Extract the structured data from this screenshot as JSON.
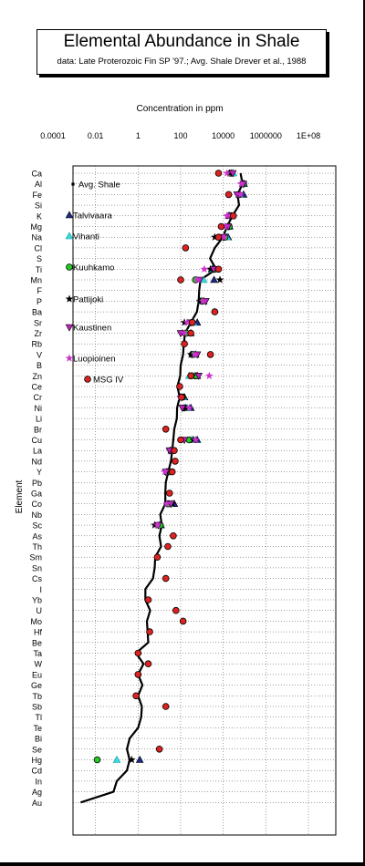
{
  "title": "Elemental  Abundance in Shale",
  "subtitle": "data:  Late Proterozoic Fin SP '97.; Avg. Shale Drever et al., 1988",
  "chart_data": {
    "type": "scatter",
    "xlabel": "Concentration in ppm",
    "ylabel": "Element",
    "x_scale": "log",
    "xlim": [
      0.0001,
      100000000
    ],
    "x_ticks": [
      "0.0001",
      "0.01",
      "1",
      "100",
      "10000",
      "1000000",
      "1E+08"
    ],
    "grid": true,
    "legend_position": "top-left",
    "categories": [
      "Ca",
      "Al",
      "Fe",
      "Si",
      "K",
      "Mg",
      "Na",
      "Cl",
      "S",
      "Ti",
      "Mn",
      "F",
      "P",
      "Ba",
      "Sr",
      "Zr",
      "Rb",
      "V",
      "B",
      "Zn",
      "Ce",
      "Cr",
      "Ni",
      "Li",
      "Br",
      "Cu",
      "La",
      "Nd",
      "Y",
      "Pb",
      "Ga",
      "Co",
      "Nb",
      "Sc",
      "As",
      "Th",
      "Sm",
      "Sn",
      "Cs",
      "I",
      "Yb",
      "U",
      "Mo",
      "Hf",
      "Be",
      "Ta",
      "W",
      "Eu",
      "Ge",
      "Tb",
      "Sb",
      "Tl",
      "Te",
      "Bi",
      "Se",
      "Hg",
      "Cd",
      "In",
      "Ag",
      "Au"
    ],
    "series": [
      {
        "name": "Avg. Shale",
        "marker": "line",
        "color": "#000000",
        "points": [
          [
            "Ca",
            65000
          ],
          [
            "Al",
            80000
          ],
          [
            "Fe",
            47000
          ],
          [
            "Si",
            55000
          ],
          [
            "K",
            27000
          ],
          [
            "Mg",
            15000
          ],
          [
            "Na",
            9600
          ],
          [
            "Cl",
            4000
          ],
          [
            "S",
            2400
          ],
          [
            "Ti",
            4600
          ],
          [
            "Mn",
            850
          ],
          [
            "F",
            740
          ],
          [
            "P",
            700
          ],
          [
            "Ba",
            580
          ],
          [
            "Sr",
            300
          ],
          [
            "Zr",
            160
          ],
          [
            "Rb",
            140
          ],
          [
            "V",
            130
          ],
          [
            "B",
            100
          ],
          [
            "Zn",
            95
          ],
          [
            "Ce",
            70
          ],
          [
            "Cr",
            90
          ],
          [
            "Ni",
            68
          ],
          [
            "Li",
            66
          ],
          [
            "Br",
            50
          ],
          [
            "Cu",
            45
          ],
          [
            "La",
            40
          ],
          [
            "Nd",
            35
          ],
          [
            "Y",
            26
          ],
          [
            "Pb",
            20
          ],
          [
            "Ga",
            19
          ],
          [
            "Co",
            19
          ],
          [
            "Nb",
            11
          ],
          [
            "Sc",
            13
          ],
          [
            "As",
            10
          ],
          [
            "Th",
            12
          ],
          [
            "Sm",
            6.4
          ],
          [
            "Sn",
            6
          ],
          [
            "Cs",
            5
          ],
          [
            "I",
            2.2
          ],
          [
            "Yb",
            2.2
          ],
          [
            "U",
            3.7
          ],
          [
            "Mo",
            2.6
          ],
          [
            "Hf",
            2.8
          ],
          [
            "Be",
            3
          ],
          [
            "Ta",
            0.8
          ],
          [
            "W",
            1.8
          ],
          [
            "Eu",
            1
          ],
          [
            "Ge",
            1.6
          ],
          [
            "Tb",
            1
          ],
          [
            "Sb",
            1.5
          ],
          [
            "Tl",
            1.4
          ],
          [
            "Te",
            1
          ],
          [
            "Bi",
            0.4
          ],
          [
            "Se",
            0.3
          ],
          [
            "Hg",
            0.4
          ],
          [
            "Cd",
            0.3
          ],
          [
            "In",
            0.1
          ],
          [
            "Ag",
            0.07
          ],
          [
            "Au",
            0.002
          ]
        ]
      },
      {
        "name": "Talvivaara",
        "marker": "triangle",
        "color": "#1a2a8a",
        "points": [
          [
            "Ca",
            25000
          ],
          [
            "Al",
            95000
          ],
          [
            "Fe",
            90000
          ],
          [
            "K",
            20000
          ],
          [
            "Mg",
            20000
          ],
          [
            "Na",
            17000
          ],
          [
            "Ti",
            3000
          ],
          [
            "Mn",
            3700
          ],
          [
            "P",
            1200
          ],
          [
            "Sr",
            600
          ],
          [
            "Zr",
            300
          ],
          [
            "V",
            500
          ],
          [
            "Zn",
            600
          ],
          [
            "Cr",
            150
          ],
          [
            "Ni",
            300
          ],
          [
            "Cu",
            600
          ],
          [
            "La",
            40
          ],
          [
            "Y",
            30
          ],
          [
            "Co",
            50
          ],
          [
            "Sc",
            12
          ],
          [
            "Hg",
            1.2
          ]
        ]
      },
      {
        "name": "Vihanti",
        "marker": "triangle",
        "color": "#33dddd",
        "points": [
          [
            "Ca",
            30000
          ],
          [
            "Al",
            85000
          ],
          [
            "Fe",
            60000
          ],
          [
            "K",
            25000
          ],
          [
            "Mg",
            18000
          ],
          [
            "Na",
            15000
          ],
          [
            "Ti",
            3200
          ],
          [
            "Mn",
            1200
          ],
          [
            "P",
            900
          ],
          [
            "Sr",
            400
          ],
          [
            "Zr",
            200
          ],
          [
            "V",
            400
          ],
          [
            "Zn",
            250
          ],
          [
            "Cr",
            130
          ],
          [
            "Ni",
            200
          ],
          [
            "Cu",
            350
          ],
          [
            "La",
            38
          ],
          [
            "Y",
            25
          ],
          [
            "Co",
            30
          ],
          [
            "Sc",
            10
          ],
          [
            "Hg",
            0.1
          ]
        ]
      },
      {
        "name": "Kuuhkamo",
        "marker": "circle",
        "color": "#22cc22",
        "points": [
          [
            "Ca",
            22000
          ],
          [
            "Al",
            90000
          ],
          [
            "Fe",
            55000
          ],
          [
            "K",
            23000
          ],
          [
            "Mg",
            19000
          ],
          [
            "Na",
            12000
          ],
          [
            "Ti",
            4000
          ],
          [
            "Mn",
            500
          ],
          [
            "P",
            1000
          ],
          [
            "Sr",
            350
          ],
          [
            "Zr",
            180
          ],
          [
            "V",
            350
          ],
          [
            "Zn",
            500
          ],
          [
            "Cr",
            120
          ],
          [
            "Ni",
            150
          ],
          [
            "Cu",
            250
          ],
          [
            "La",
            35
          ],
          [
            "Y",
            28
          ],
          [
            "Co",
            25
          ],
          [
            "Sc",
            11
          ],
          [
            "Hg",
            0.012
          ]
        ]
      },
      {
        "name": "Pattijoki",
        "marker": "star",
        "color": "#000000",
        "points": [
          [
            "Ca",
            20000
          ],
          [
            "Al",
            75000
          ],
          [
            "Fe",
            50000
          ],
          [
            "K",
            18000
          ],
          [
            "Mg",
            16000
          ],
          [
            "Na",
            4000
          ],
          [
            "Ti",
            2500
          ],
          [
            "Mn",
            7000
          ],
          [
            "P",
            800
          ],
          [
            "Sr",
            150
          ],
          [
            "Zr",
            120
          ],
          [
            "V",
            300
          ],
          [
            "Zn",
            350
          ],
          [
            "Cr",
            100
          ],
          [
            "Ni",
            170
          ],
          [
            "Cu",
            400
          ],
          [
            "La",
            32
          ],
          [
            "Y",
            22
          ],
          [
            "Co",
            40
          ],
          [
            "Sc",
            6
          ],
          [
            "Hg",
            0.5
          ]
        ]
      },
      {
        "name": "Kaustinen",
        "marker": "triangle-down",
        "color": "#bb22bb",
        "points": [
          [
            "Ca",
            28000
          ],
          [
            "Al",
            88000
          ],
          [
            "Fe",
            45000
          ],
          [
            "K",
            21000
          ],
          [
            "Mg",
            17000
          ],
          [
            "Na",
            10000
          ],
          [
            "Ti",
            3500
          ],
          [
            "Mn",
            800
          ],
          [
            "P",
            1500
          ],
          [
            "Sr",
            300
          ],
          [
            "Zr",
            100
          ],
          [
            "V",
            600
          ],
          [
            "Zn",
            700
          ],
          [
            "Cr",
            110
          ],
          [
            "Ni",
            120
          ],
          [
            "Cu",
            150
          ],
          [
            "La",
            30
          ],
          [
            "Y",
            20
          ],
          [
            "Co",
            35
          ],
          [
            "Sc",
            9
          ]
        ]
      },
      {
        "name": "Luopioinen",
        "marker": "star",
        "color": "#cc33cc",
        "points": [
          [
            "Ca",
            15000
          ],
          [
            "Al",
            70000
          ],
          [
            "Fe",
            65000
          ],
          [
            "K",
            15000
          ],
          [
            "Mg",
            12000
          ],
          [
            "Na",
            11000
          ],
          [
            "Ti",
            1300
          ],
          [
            "Mn",
            600
          ],
          [
            "P",
            1100
          ],
          [
            "Sr",
            200
          ],
          [
            "Zr",
            150
          ],
          [
            "V",
            450
          ],
          [
            "Zn",
            2200
          ],
          [
            "Cr",
            95
          ],
          [
            "Ni",
            250
          ],
          [
            "Cu",
            500
          ],
          [
            "La",
            45
          ],
          [
            "Y",
            18
          ],
          [
            "Co",
            22
          ],
          [
            "Sc",
            8
          ]
        ]
      },
      {
        "name": "MSG IV",
        "marker": "circle",
        "color": "#dd2222",
        "points": [
          [
            "Ca",
            6000
          ],
          [
            "Fe",
            18000
          ],
          [
            "K",
            30000
          ],
          [
            "Mg",
            8000
          ],
          [
            "Na",
            6000
          ],
          [
            "Cl",
            170
          ],
          [
            "Ti",
            6000
          ],
          [
            "Mn",
            100
          ],
          [
            "Ba",
            4000
          ],
          [
            "Sr",
            350
          ],
          [
            "Zr",
            300
          ],
          [
            "Rb",
            150
          ],
          [
            "V",
            2500
          ],
          [
            "Zn",
            300
          ],
          [
            "Ce",
            90
          ],
          [
            "Cr",
            110
          ],
          [
            "Br",
            20
          ],
          [
            "Cu",
            100
          ],
          [
            "La",
            50
          ],
          [
            "Nd",
            55
          ],
          [
            "Y",
            40
          ],
          [
            "Ga",
            30
          ],
          [
            "As",
            45
          ],
          [
            "Th",
            25
          ],
          [
            "Sm",
            8
          ],
          [
            "Cs",
            20
          ],
          [
            "Yb",
            3
          ],
          [
            "U",
            60
          ],
          [
            "Mo",
            130
          ],
          [
            "Hf",
            3.5
          ],
          [
            "Ta",
            1
          ],
          [
            "W",
            3
          ],
          [
            "Eu",
            1
          ],
          [
            "Tb",
            0.8
          ],
          [
            "Sb",
            20
          ],
          [
            "Se",
            10
          ]
        ]
      }
    ]
  }
}
